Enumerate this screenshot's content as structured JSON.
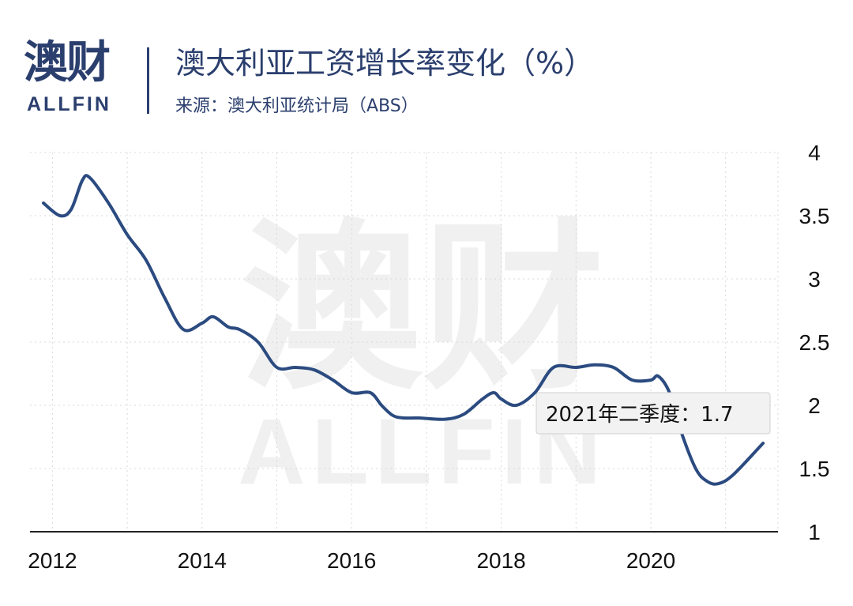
{
  "logo": {
    "cn": "澳财",
    "en": "ALLFIN"
  },
  "header": {
    "title": "澳大利亚工资增长率变化（%）",
    "subtitle": "来源：澳大利亚统计局（ABS）"
  },
  "colors": {
    "line": "#2b4b80",
    "brand": "#2b3f6e",
    "grid": "#d9d9d9",
    "tooltip_bg": "#f2f2f2"
  },
  "chart_data": {
    "type": "line",
    "title": "澳大利亚工资增长率变化（%）",
    "xlabel": "",
    "ylabel": "",
    "x_ticks": [
      "2012",
      "2014",
      "2016",
      "2018",
      "2020"
    ],
    "y_ticks": [
      "1",
      "1.5",
      "2",
      "2.5",
      "3",
      "3.5",
      "4"
    ],
    "xlim": [
      2011.7,
      2021.7
    ],
    "ylim": [
      1,
      4
    ],
    "grid": true,
    "y_axis_side": "right",
    "series": [
      {
        "x": [
          2011.88,
          2012.1,
          2012.25,
          2012.4,
          2012.5,
          2012.75,
          2013.0,
          2013.25,
          2013.5,
          2013.75,
          2014.0,
          2014.15,
          2014.35,
          2014.5,
          2014.75,
          2015.0,
          2015.25,
          2015.5,
          2015.75,
          2016.0,
          2016.25,
          2016.4,
          2016.55,
          2016.7,
          2016.9,
          2017.25,
          2017.5,
          2017.75,
          2017.9,
          2018.0,
          2018.2,
          2018.45,
          2018.7,
          2019.0,
          2019.25,
          2019.5,
          2019.75,
          2020.0,
          2020.1,
          2020.25,
          2020.4,
          2020.6,
          2020.75,
          2020.9,
          2021.1,
          2021.5
        ],
        "y": [
          3.6,
          3.5,
          3.55,
          3.78,
          3.8,
          3.6,
          3.35,
          3.15,
          2.85,
          2.6,
          2.65,
          2.7,
          2.62,
          2.6,
          2.5,
          2.3,
          2.3,
          2.28,
          2.2,
          2.1,
          2.1,
          2.0,
          1.92,
          1.9,
          1.9,
          1.89,
          1.93,
          2.05,
          2.1,
          2.05,
          2.0,
          2.1,
          2.3,
          2.3,
          2.32,
          2.3,
          2.2,
          2.2,
          2.23,
          2.1,
          1.8,
          1.5,
          1.4,
          1.38,
          1.45,
          1.7
        ]
      }
    ],
    "annotation": {
      "x": 2021.5,
      "text": "2021年二季度：1.7"
    }
  },
  "watermark": {
    "cn": "澳财",
    "en": "ALLFIN"
  }
}
